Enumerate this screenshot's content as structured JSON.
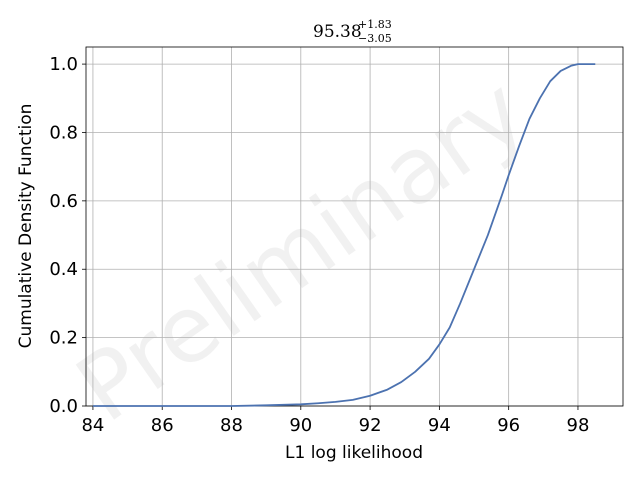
{
  "chart_data": {
    "type": "line",
    "title": {
      "value": "95.38",
      "upper": "+1.83",
      "lower": "−3.05"
    },
    "xlabel": "L1 log likelihood",
    "ylabel": "Cumulative Density Function",
    "xlim": [
      83.8,
      99.3
    ],
    "ylim": [
      0.0,
      1.05
    ],
    "xticks": [
      84,
      86,
      88,
      90,
      92,
      94,
      96,
      98
    ],
    "xtick_labels": [
      "84",
      "86",
      "88",
      "90",
      "92",
      "94",
      "96",
      "98"
    ],
    "yticks": [
      0.0,
      0.2,
      0.4,
      0.6,
      0.8,
      1.0
    ],
    "ytick_labels": [
      "0.0",
      "0.2",
      "0.4",
      "0.6",
      "0.8",
      "1.0"
    ],
    "grid": true,
    "watermark": "Preliminary",
    "line_color": "#4c72b0",
    "series": [
      {
        "x": [
          84.0,
          86.0,
          88.0,
          89.0,
          90.0,
          90.5,
          91.0,
          91.5,
          92.0,
          92.5,
          92.9,
          93.3,
          93.7,
          94.0,
          94.3,
          94.6,
          95.0,
          95.4,
          95.8,
          96.0,
          96.3,
          96.6,
          96.9,
          97.2,
          97.5,
          97.8,
          98.0,
          98.2,
          98.5
        ],
        "y": [
          0.0,
          0.0,
          0.0,
          0.002,
          0.005,
          0.008,
          0.012,
          0.018,
          0.03,
          0.048,
          0.07,
          0.1,
          0.138,
          0.18,
          0.23,
          0.3,
          0.4,
          0.5,
          0.615,
          0.675,
          0.76,
          0.84,
          0.9,
          0.95,
          0.98,
          0.995,
          1.0,
          1.0,
          1.0
        ]
      }
    ]
  }
}
